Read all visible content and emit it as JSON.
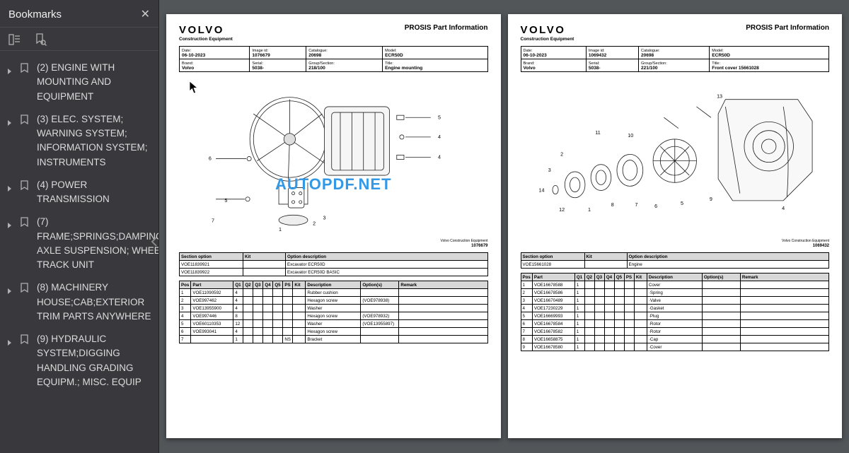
{
  "sidebar": {
    "title": "Bookmarks",
    "items": [
      {
        "label": "(2) ENGINE WITH MOUNTING AND EQUIPMENT"
      },
      {
        "label": "(3) ELEC. SYSTEM; WARNING SYSTEM; INFORMATION SYSTEM; INSTRUMENTS"
      },
      {
        "label": "(4) POWER TRANSMISSION"
      },
      {
        "label": "(7) FRAME;SPRINGS;DAMPING; AXLE SUSPENSION; WHEEL TRACK UNIT"
      },
      {
        "label": "(8) MACHINERY HOUSE;CAB;EXTERIOR TRIM PARTS ANYWHERE"
      },
      {
        "label": "(9) HYDRAULIC SYSTEM;DIGGING HANDLING GRADING EQUIPM.; MISC. EQUIP"
      }
    ]
  },
  "watermark": "AUTOPDF.NET",
  "pages": [
    {
      "brand_logo": "VOLVO",
      "brand_sub": "Construction Equipment",
      "page_title": "PROSIS Part Information",
      "header": {
        "date_lbl": "Date:",
        "date": "06-10-2023",
        "image_lbl": "Image id:",
        "image": "1076679",
        "cat_lbl": "Catalogue:",
        "cat": "20698",
        "model_lbl": "Model:",
        "model": "ECR50D",
        "brand_lbl": "Brand:",
        "brand": "Volvo",
        "serial_lbl": "Serial:",
        "serial": "5038-",
        "group_lbl": "Group/Section:",
        "group": "218/100",
        "title_lbl": "Title:",
        "title": "Engine mounting"
      },
      "diagram_footer_brand": "Volvo Construction Equipment",
      "diagram_id": "1076679",
      "section_cols": {
        "c1": "Section option",
        "c2": "Kit",
        "c3": "Option description"
      },
      "section_rows": [
        {
          "opt": "VOE11839921",
          "kit": "",
          "desc": "Excavator ECR50D"
        },
        {
          "opt": "VOE11839922",
          "kit": "",
          "desc": "Excavator ECR50D BASIC"
        }
      ],
      "parts_cols": {
        "pos": "Pos",
        "part": "Part",
        "q1": "Q1",
        "q2": "Q2",
        "q3": "Q3",
        "q4": "Q4",
        "q5": "Q5",
        "ps": "PS",
        "kit": "Kit",
        "desc": "Description",
        "opts": "Option(s)",
        "rem": "Remark"
      },
      "parts_rows": [
        {
          "pos": "1",
          "part": "VOE11090592",
          "q1": "4",
          "q2": "",
          "q3": "",
          "q4": "",
          "q5": "",
          "ps": "",
          "kit": "",
          "desc": "Rubber cushion",
          "opts": "",
          "rem": ""
        },
        {
          "pos": "2",
          "part": "VOE997462",
          "q1": "4",
          "q2": "",
          "q3": "",
          "q4": "",
          "q5": "",
          "ps": "",
          "kit": "",
          "desc": "Hexagon screw",
          "opts": "(VOE978938)",
          "rem": ""
        },
        {
          "pos": "3",
          "part": "VOE13955900",
          "q1": "4",
          "q2": "",
          "q3": "",
          "q4": "",
          "q5": "",
          "ps": "",
          "kit": "",
          "desc": "Washer",
          "opts": "",
          "rem": ""
        },
        {
          "pos": "4",
          "part": "VOE997446",
          "q1": "8",
          "q2": "",
          "q3": "",
          "q4": "",
          "q5": "",
          "ps": "",
          "kit": "",
          "desc": "Hexagon screw",
          "opts": "(VOE978932)",
          "rem": ""
        },
        {
          "pos": "5",
          "part": "VOE60110353",
          "q1": "12",
          "q2": "",
          "q3": "",
          "q4": "",
          "q5": "",
          "ps": "",
          "kit": "",
          "desc": "Washer",
          "opts": "(VOE13955897)",
          "rem": ""
        },
        {
          "pos": "6",
          "part": "VOE993041",
          "q1": "4",
          "q2": "",
          "q3": "",
          "q4": "",
          "q5": "",
          "ps": "",
          "kit": "",
          "desc": "Hexagon screw",
          "opts": "",
          "rem": ""
        },
        {
          "pos": "7",
          "part": "",
          "q1": "1",
          "q2": "",
          "q3": "",
          "q4": "",
          "q5": "",
          "ps": "NS",
          "kit": "",
          "desc": "Bracket",
          "opts": "",
          "rem": ""
        }
      ]
    },
    {
      "brand_logo": "VOLVO",
      "brand_sub": "Construction Equipment",
      "page_title": "PROSIS Part Information",
      "header": {
        "date_lbl": "Date:",
        "date": "06-10-2023",
        "image_lbl": "Image id:",
        "image": "1069432",
        "cat_lbl": "Catalogue:",
        "cat": "20698",
        "model_lbl": "Model:",
        "model": "ECR50D",
        "brand_lbl": "Brand:",
        "brand": "Volvo",
        "serial_lbl": "Serial:",
        "serial": "5038-",
        "group_lbl": "Group/Section:",
        "group": "221/100",
        "title_lbl": "Title:",
        "title": "Front cover 15661028"
      },
      "diagram_footer_brand": "Volvo Construction Equipment",
      "diagram_id": "1069432",
      "section_cols": {
        "c1": "Section option",
        "c2": "Kit",
        "c3": "Option description"
      },
      "section_rows": [
        {
          "opt": "VOE15661028",
          "kit": "",
          "desc": "Engine"
        }
      ],
      "parts_cols": {
        "pos": "Pos",
        "part": "Part",
        "q1": "Q1",
        "q2": "Q2",
        "q3": "Q3",
        "q4": "Q4",
        "q5": "Q5",
        "ps": "PS",
        "kit": "Kit",
        "desc": "Description",
        "opts": "Option(s)",
        "rem": "Remark"
      },
      "parts_rows": [
        {
          "pos": "1",
          "part": "VOE16678588",
          "q1": "1",
          "q2": "",
          "q3": "",
          "q4": "",
          "q5": "",
          "ps": "",
          "kit": "",
          "desc": "Cover",
          "opts": "",
          "rem": ""
        },
        {
          "pos": "2",
          "part": "VOE16678586",
          "q1": "1",
          "q2": "",
          "q3": "",
          "q4": "",
          "q5": "",
          "ps": "",
          "kit": "",
          "desc": "·Spring",
          "opts": "",
          "rem": ""
        },
        {
          "pos": "3",
          "part": "VOE16670489",
          "q1": "1",
          "q2": "",
          "q3": "",
          "q4": "",
          "q5": "",
          "ps": "",
          "kit": "",
          "desc": "·Valve",
          "opts": "",
          "rem": ""
        },
        {
          "pos": "4",
          "part": "VOE17230229",
          "q1": "1",
          "q2": "",
          "q3": "",
          "q4": "",
          "q5": "",
          "ps": "",
          "kit": "",
          "desc": "·Gasket",
          "opts": "",
          "rem": ""
        },
        {
          "pos": "5",
          "part": "VOE16669993",
          "q1": "1",
          "q2": "",
          "q3": "",
          "q4": "",
          "q5": "",
          "ps": "",
          "kit": "",
          "desc": "·Plug",
          "opts": "",
          "rem": ""
        },
        {
          "pos": "6",
          "part": "VOE16678584",
          "q1": "1",
          "q2": "",
          "q3": "",
          "q4": "",
          "q5": "",
          "ps": "",
          "kit": "",
          "desc": "·Rotor",
          "opts": "",
          "rem": ""
        },
        {
          "pos": "7",
          "part": "VOE16678582",
          "q1": "1",
          "q2": "",
          "q3": "",
          "q4": "",
          "q5": "",
          "ps": "",
          "kit": "",
          "desc": "·Rotor",
          "opts": "",
          "rem": ""
        },
        {
          "pos": "8",
          "part": "VOE16658875",
          "q1": "1",
          "q2": "",
          "q3": "",
          "q4": "",
          "q5": "",
          "ps": "",
          "kit": "",
          "desc": "·Cap",
          "opts": "",
          "rem": ""
        },
        {
          "pos": "9",
          "part": "VOE16678580",
          "q1": "1",
          "q2": "",
          "q3": "",
          "q4": "",
          "q5": "",
          "ps": "",
          "kit": "",
          "desc": "·Cover",
          "opts": "",
          "rem": ""
        }
      ]
    }
  ]
}
